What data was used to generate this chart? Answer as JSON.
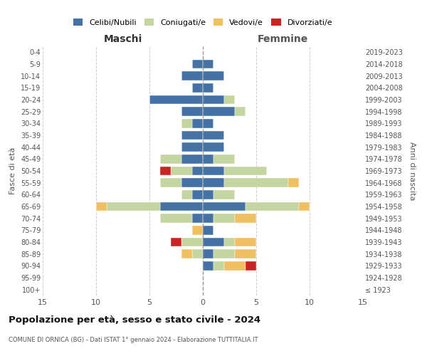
{
  "age_groups": [
    "100+",
    "95-99",
    "90-94",
    "85-89",
    "80-84",
    "75-79",
    "70-74",
    "65-69",
    "60-64",
    "55-59",
    "50-54",
    "45-49",
    "40-44",
    "35-39",
    "30-34",
    "25-29",
    "20-24",
    "15-19",
    "10-14",
    "5-9",
    "0-4"
  ],
  "birth_years": [
    "≤ 1923",
    "1924-1928",
    "1929-1933",
    "1934-1938",
    "1939-1943",
    "1944-1948",
    "1949-1953",
    "1954-1958",
    "1959-1963",
    "1964-1968",
    "1969-1973",
    "1974-1978",
    "1979-1983",
    "1984-1988",
    "1989-1993",
    "1994-1998",
    "1999-2003",
    "2004-2008",
    "2009-2013",
    "2014-2018",
    "2019-2023"
  ],
  "colors": {
    "celibi": "#4472a4",
    "coniugati": "#c5d5a0",
    "vedovi": "#f0c060",
    "divorziati": "#cc2222"
  },
  "maschi": {
    "celibi": [
      0,
      0,
      0,
      0,
      0,
      0,
      1,
      4,
      1,
      2,
      1,
      2,
      2,
      2,
      1,
      2,
      5,
      1,
      2,
      1,
      0
    ],
    "coniugati": [
      0,
      0,
      0,
      1,
      2,
      0,
      3,
      5,
      1,
      2,
      2,
      2,
      0,
      0,
      1,
      0,
      0,
      0,
      0,
      0,
      0
    ],
    "vedovi": [
      0,
      0,
      0,
      1,
      0,
      1,
      0,
      1,
      0,
      0,
      0,
      0,
      0,
      0,
      0,
      0,
      0,
      0,
      0,
      0,
      0
    ],
    "divorziati": [
      0,
      0,
      0,
      0,
      1,
      0,
      0,
      0,
      0,
      0,
      1,
      0,
      0,
      0,
      0,
      0,
      0,
      0,
      0,
      0,
      0
    ]
  },
  "femmine": {
    "celibi": [
      0,
      0,
      1,
      1,
      2,
      1,
      1,
      4,
      1,
      2,
      2,
      1,
      2,
      2,
      1,
      3,
      2,
      1,
      2,
      1,
      0
    ],
    "coniugati": [
      0,
      0,
      1,
      2,
      1,
      0,
      2,
      5,
      2,
      6,
      4,
      2,
      0,
      0,
      0,
      1,
      1,
      0,
      0,
      0,
      0
    ],
    "vedovi": [
      0,
      0,
      2,
      2,
      2,
      0,
      2,
      1,
      0,
      1,
      0,
      0,
      0,
      0,
      0,
      0,
      0,
      0,
      0,
      0,
      0
    ],
    "divorziati": [
      0,
      0,
      1,
      0,
      0,
      0,
      0,
      0,
      0,
      0,
      0,
      0,
      0,
      0,
      0,
      0,
      0,
      0,
      0,
      0,
      0
    ]
  },
  "xlim": 15,
  "title": "Popolazione per età, sesso e stato civile - 2024",
  "subtitle": "COMUNE DI ORNICA (BG) - Dati ISTAT 1° gennaio 2024 - Elaborazione TUTTITALIA.IT",
  "xlabel_left": "Maschi",
  "xlabel_right": "Femmine",
  "ylabel_left": "Fasce di età",
  "ylabel_right": "Anni di nascita",
  "legend_labels": [
    "Celibi/Nubili",
    "Coniugati/e",
    "Vedovi/e",
    "Divorziati/e"
  ],
  "background_color": "#ffffff",
  "grid_color": "#cccccc"
}
